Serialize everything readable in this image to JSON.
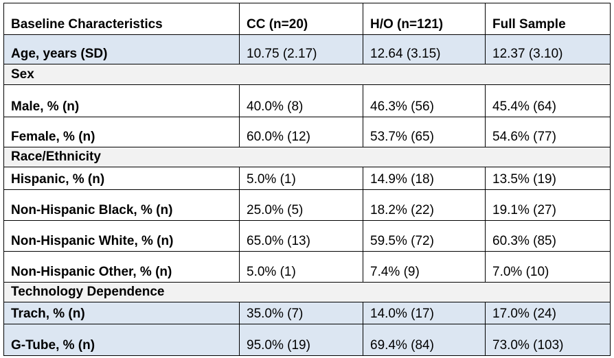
{
  "table": {
    "headers": [
      "Baseline Characteristics",
      "CC (n=20)",
      "H/O (n=121)",
      "Full Sample"
    ],
    "rows": [
      {
        "type": "data",
        "highlight": true,
        "cells": [
          "Age, years (SD)",
          "10.75 (2.17)",
          "12.64 (3.15)",
          "12.37 (3.10)"
        ]
      },
      {
        "type": "section",
        "cells": [
          "Sex"
        ]
      },
      {
        "type": "data",
        "highlight": false,
        "cells": [
          "Male, % (n)",
          "40.0% (8)",
          "46.3% (56)",
          "45.4% (64)"
        ]
      },
      {
        "type": "data",
        "highlight": false,
        "cells": [
          "Female, % (n)",
          "60.0% (12)",
          "53.7% (65)",
          "54.6% (77)"
        ]
      },
      {
        "type": "section",
        "cells": [
          "Race/Ethnicity"
        ]
      },
      {
        "type": "data",
        "highlight": false,
        "cells": [
          "Hispanic, % (n)",
          "5.0% (1)",
          "14.9% (18)",
          "13.5% (19)"
        ]
      },
      {
        "type": "data",
        "highlight": false,
        "cells": [
          "Non-Hispanic Black, % (n)",
          "25.0% (5)",
          "18.2% (22)",
          "19.1% (27)"
        ]
      },
      {
        "type": "data",
        "highlight": false,
        "cells": [
          "Non-Hispanic White, % (n)",
          "65.0% (13)",
          "59.5% (72)",
          "60.3% (85)"
        ]
      },
      {
        "type": "data",
        "highlight": false,
        "cells": [
          "Non-Hispanic Other, % (n)",
          "5.0% (1)",
          "7.4% (9)",
          "7.0% (10)"
        ]
      },
      {
        "type": "section",
        "cells": [
          "Technology Dependence"
        ]
      },
      {
        "type": "data",
        "highlight": true,
        "cells": [
          "Trach, % (n)",
          "35.0% (7)",
          "14.0% (17)",
          "17.0% (24)"
        ]
      },
      {
        "type": "data",
        "highlight": true,
        "cells": [
          "G-Tube, % (n)",
          "95.0% (19)",
          "69.4% (84)",
          "73.0% (103)"
        ]
      }
    ]
  },
  "colors": {
    "highlight_row": "#dce6f2",
    "section_row": "#f2f2f2",
    "border": "#000000"
  }
}
